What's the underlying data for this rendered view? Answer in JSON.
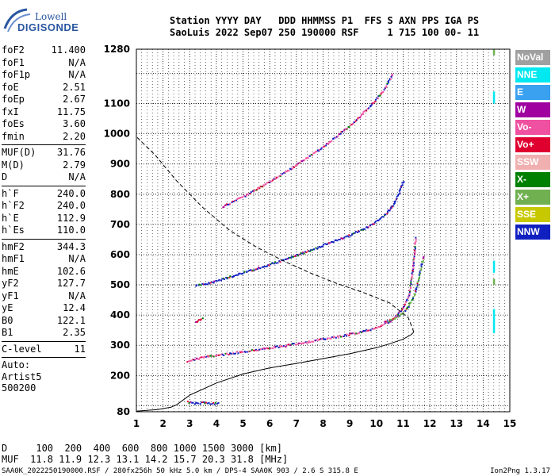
{
  "logo": {
    "line1": "Lowell",
    "line2": "DIGISONDE"
  },
  "header": {
    "line1": "Station YYYY DAY   DDD HHMMSS P1  FFS S AXN PPS IGA PS",
    "line2": "SaoLuis 2022 Sep07 250 190000 RSF     1 715 100 00- 11"
  },
  "params": {
    "group1": [
      {
        "name": "foF2",
        "value": "11.400"
      },
      {
        "name": "foF1",
        "value": "N/A"
      },
      {
        "name": "foF1p",
        "value": "N/A"
      },
      {
        "name": "foE",
        "value": "2.51"
      },
      {
        "name": "foEp",
        "value": "2.67"
      },
      {
        "name": "fxI",
        "value": "11.75"
      },
      {
        "name": "foEs",
        "value": "3.60"
      },
      {
        "name": "fmin",
        "value": "2.20"
      }
    ],
    "group2": [
      {
        "name": "MUF(D)",
        "value": "31.76"
      },
      {
        "name": "M(D)",
        "value": "2.79"
      },
      {
        "name": "D",
        "value": "N/A"
      }
    ],
    "group3": [
      {
        "name": "h`F",
        "value": "240.0"
      },
      {
        "name": "h`F2",
        "value": "240.0"
      },
      {
        "name": "h`E",
        "value": "112.9"
      },
      {
        "name": "h`Es",
        "value": "110.0"
      }
    ],
    "group4": [
      {
        "name": "hmF2",
        "value": "344.3"
      },
      {
        "name": "hmF1",
        "value": "N/A"
      },
      {
        "name": "hmE",
        "value": "102.6"
      },
      {
        "name": "yF2",
        "value": "127.7"
      },
      {
        "name": "yF1",
        "value": "N/A"
      },
      {
        "name": "yE",
        "value": "12.4"
      },
      {
        "name": "B0",
        "value": "122.1"
      },
      {
        "name": "B1",
        "value": "2.35"
      }
    ],
    "clevel": {
      "name": "C-level",
      "value": "11"
    },
    "autoscaling": [
      "Auto:",
      "Artist5",
      "500200"
    ]
  },
  "legend": [
    {
      "label": "NoVal",
      "color": "#a0a0a0"
    },
    {
      "label": "NNE",
      "color": "#00e8f0"
    },
    {
      "label": "E",
      "color": "#3aa0f0"
    },
    {
      "label": "W",
      "color": "#a000a0"
    },
    {
      "label": "Vo-",
      "color": "#f050a0"
    },
    {
      "label": "Vo+",
      "color": "#e00030"
    },
    {
      "label": "SSW",
      "color": "#f0b0b0"
    },
    {
      "label": "X-",
      "color": "#008000"
    },
    {
      "label": "X+",
      "color": "#70b050"
    },
    {
      "label": "SSE",
      "color": "#c8c800"
    },
    {
      "label": "NNW",
      "color": "#1020c0"
    }
  ],
  "footer": {
    "line1": "D     100  200  400  600  800 1000 1500 3000 [km]",
    "line2": "MUF  11.8 11.9 12.3 13.1 14.2 15.7 20.3 31.8 [MHz]",
    "line3": "SAA0K_2022250190000.RSF / 280fx256h 50 kHz 5.0 km / DPS-4 SAA0K 903 / 2.6 S 315.8 E",
    "line4": "Ion2Png 1.3.17"
  },
  "chart_data": {
    "type": "scatter",
    "xlabel": "",
    "ylabel": "",
    "xlim": [
      1,
      15
    ],
    "ylim": [
      80,
      1280
    ],
    "x_ticks": [
      1,
      2,
      3,
      4,
      5,
      6,
      7,
      8,
      9,
      10,
      11,
      12,
      13,
      14,
      15
    ],
    "y_ticks": [
      80,
      200,
      300,
      400,
      500,
      600,
      700,
      800,
      900,
      1000,
      1100,
      1280
    ],
    "grid": true,
    "series": [
      {
        "role": "O-trace F2 first hop",
        "color": "#f050a0",
        "x": [
          2.9,
          3.5,
          4.5,
          5.5,
          6.5,
          7.5,
          8.5,
          9.5,
          10.0,
          10.5,
          10.9,
          11.2,
          11.35,
          11.45
        ],
        "y": [
          250,
          263,
          275,
          288,
          300,
          315,
          330,
          348,
          362,
          382,
          415,
          470,
          560,
          660
        ]
      },
      {
        "role": "X-trace F2 first hop",
        "color": "#70b050",
        "x": [
          10.3,
          10.8,
          11.1,
          11.4,
          11.6,
          11.75
        ],
        "y": [
          378,
          398,
          420,
          465,
          540,
          600
        ]
      },
      {
        "role": "F2 second hop",
        "color": "#1020c0",
        "x": [
          3.2,
          4.0,
          5.0,
          6.0,
          7.0,
          8.0,
          9.0,
          9.8,
          10.3,
          10.6,
          10.8,
          11.0
        ],
        "y": [
          498,
          515,
          543,
          570,
          600,
          634,
          667,
          700,
          735,
          765,
          800,
          850
        ]
      },
      {
        "role": "F2 third hop",
        "color": "#f050a0",
        "x": [
          4.2,
          5.0,
          6.0,
          7.0,
          8.0,
          9.0,
          9.7,
          10.2,
          10.6
        ],
        "y": [
          760,
          795,
          845,
          900,
          960,
          1030,
          1090,
          1140,
          1200
        ]
      },
      {
        "role": "E / Es traces",
        "color": "#1020c0",
        "x": [
          2.9,
          3.1,
          3.3,
          3.5,
          3.7,
          3.9,
          4.1
        ],
        "y": [
          115,
          110,
          111,
          112,
          110,
          109,
          110
        ]
      },
      {
        "role": "Es second hop",
        "color": "#e00030",
        "x": [
          3.2,
          3.5
        ],
        "y": [
          380,
          395
        ]
      }
    ],
    "profile": {
      "role": "true height profile",
      "x": [
        1.0,
        1.8,
        2.3,
        2.51,
        3.0,
        4.0,
        5.0,
        6.0,
        7.0,
        8.0,
        9.0,
        10.0,
        10.5,
        11.0,
        11.3,
        11.4
      ],
      "y": [
        82,
        87,
        95,
        103,
        135,
        175,
        205,
        225,
        240,
        256,
        272,
        292,
        305,
        320,
        335,
        344
      ]
    },
    "profile_extension": {
      "role": "topside extrapolation (dashed)",
      "x": [
        11.4,
        11.2,
        10.5,
        9.5,
        8.5,
        7.5,
        6.5,
        5.5,
        4.5,
        3.5,
        2.5,
        1.7,
        1.0
      ],
      "y": [
        344,
        390,
        440,
        475,
        505,
        540,
        580,
        625,
        680,
        755,
        845,
        930,
        990
      ]
    }
  }
}
